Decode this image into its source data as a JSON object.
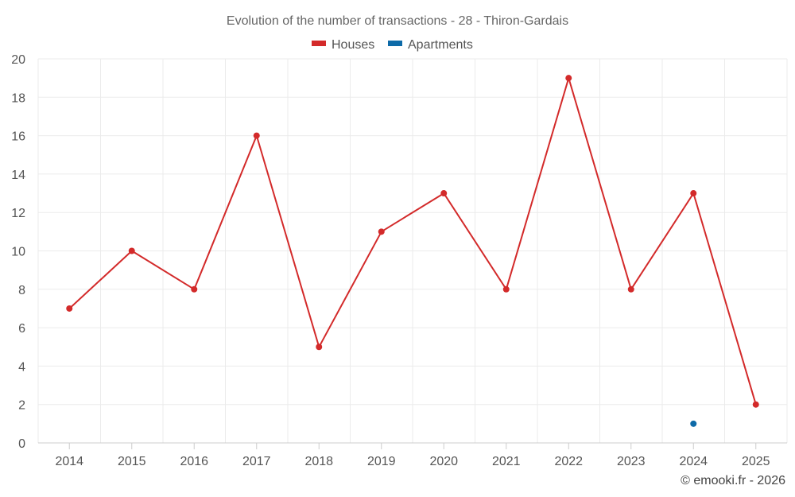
{
  "chart_data": {
    "type": "line",
    "title": "Evolution of the number of transactions - 28 - Thiron-Gardais",
    "categories": [
      "2014",
      "2015",
      "2016",
      "2017",
      "2018",
      "2019",
      "2020",
      "2021",
      "2022",
      "2023",
      "2024",
      "2025"
    ],
    "series": [
      {
        "name": "Houses",
        "color": "#d32a2a",
        "values": [
          7,
          10,
          8,
          16,
          5,
          11,
          13,
          8,
          19,
          8,
          13,
          2
        ]
      },
      {
        "name": "Apartments",
        "color": "#0d6aa8",
        "values": [
          null,
          null,
          null,
          null,
          null,
          null,
          null,
          null,
          null,
          null,
          1,
          null
        ]
      }
    ],
    "ylim": [
      0,
      20
    ],
    "yticks": [
      0,
      2,
      4,
      6,
      8,
      10,
      12,
      14,
      16,
      18,
      20
    ],
    "xlabel": "",
    "ylabel": "",
    "grid": true,
    "legend_position": "top-center"
  },
  "credit": "© emooki.fr - 2026"
}
